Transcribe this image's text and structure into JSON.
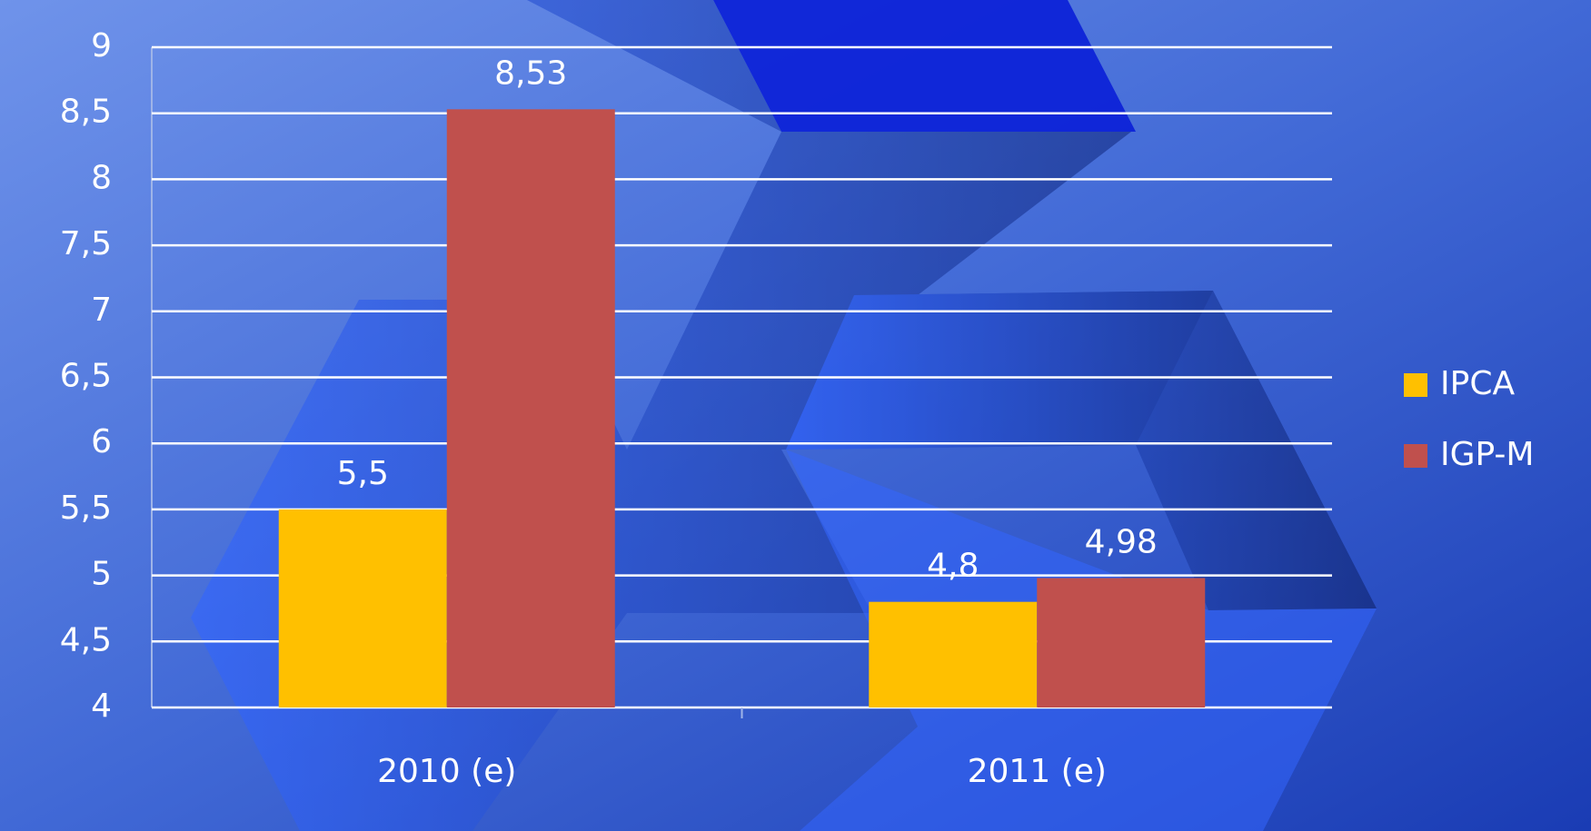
{
  "chart_data": {
    "type": "bar",
    "categories": [
      "2010 (e)",
      "2011 (e)"
    ],
    "series": [
      {
        "name": "IPCA",
        "color": "#ffc000",
        "values": [
          5.5,
          4.8
        ],
        "value_labels": [
          "5,5",
          "4,8"
        ]
      },
      {
        "name": "IGP-M",
        "color": "#c0504d",
        "values": [
          8.53,
          4.98
        ],
        "value_labels": [
          "8,53",
          "4,98"
        ]
      }
    ],
    "ylim": [
      4,
      9
    ],
    "yticks": [
      4,
      {
        "value": 4.5,
        "label": "4,5"
      },
      5,
      {
        "value": 5.5,
        "label": "5,5"
      },
      6,
      {
        "value": 6.5,
        "label": "6,5"
      },
      7,
      {
        "value": 7.5,
        "label": "7,5"
      },
      8,
      {
        "value": 8.5,
        "label": "8,5"
      },
      9
    ],
    "grid": true,
    "legend": "right"
  }
}
